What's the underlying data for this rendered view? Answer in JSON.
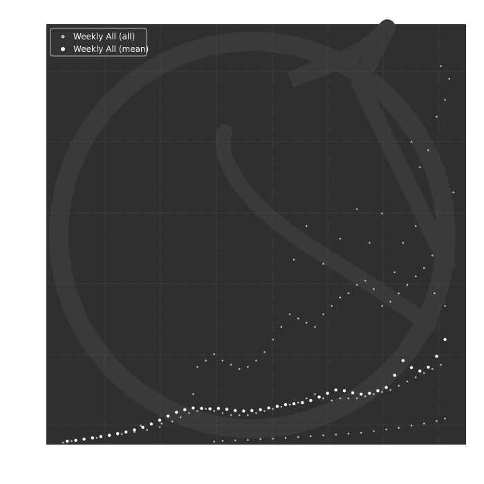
{
  "colors": {
    "page_background": "#ffffff",
    "plot_background": "#2f2f2f",
    "grid": "#6a6a6a",
    "all_points": "#bdbdbd",
    "mean_points": "#ffffff",
    "watermark": "#3a3a3a"
  },
  "chart_data": {
    "type": "scatter",
    "title": "",
    "xlabel": "",
    "ylabel": "",
    "xlim": [
      0,
      200
    ],
    "ylim": [
      0,
      100
    ],
    "grid": true,
    "tick_labels_visible": false,
    "legend": {
      "position": "top-left",
      "entries": [
        "Weekly All (all)",
        "Weekly All (mean)"
      ]
    },
    "series": [
      {
        "name": "Weekly All (all)",
        "marker": "small-dot",
        "values": [
          [
            8,
            0.5
          ],
          [
            12,
            0.8
          ],
          [
            18,
            1.2
          ],
          [
            24,
            1.6
          ],
          [
            30,
            2.0
          ],
          [
            36,
            2.5
          ],
          [
            42,
            3.0
          ],
          [
            48,
            3.5
          ],
          [
            54,
            4.2
          ],
          [
            60,
            5.5
          ],
          [
            64,
            6.5
          ],
          [
            68,
            7.5
          ],
          [
            72,
            8.0
          ],
          [
            76,
            8.5
          ],
          [
            80,
            8.0
          ],
          [
            84,
            7.5
          ],
          [
            88,
            7.0
          ],
          [
            92,
            7.0
          ],
          [
            96,
            7.0
          ],
          [
            100,
            7.5
          ],
          [
            104,
            8.0
          ],
          [
            108,
            8.5
          ],
          [
            112,
            9.0
          ],
          [
            116,
            9.5
          ],
          [
            120,
            10.0
          ],
          [
            124,
            11.0
          ],
          [
            128,
            12.0
          ],
          [
            132,
            11.0
          ],
          [
            136,
            10.5
          ],
          [
            140,
            11.0
          ],
          [
            144,
            11.0
          ],
          [
            148,
            11.0
          ],
          [
            152,
            11.5
          ],
          [
            156,
            12.0
          ],
          [
            160,
            12.5
          ],
          [
            164,
            13.0
          ],
          [
            168,
            14.0
          ],
          [
            172,
            15.0
          ],
          [
            176,
            16.0
          ],
          [
            180,
            17.0
          ],
          [
            184,
            18.0
          ],
          [
            188,
            19.0
          ],
          [
            45,
            4.5
          ],
          [
            55,
            5.0
          ],
          [
            62,
            7.5
          ],
          [
            70,
            12.0
          ],
          [
            72,
            18.5
          ],
          [
            76,
            20.0
          ],
          [
            80,
            21.5
          ],
          [
            84,
            20.0
          ],
          [
            88,
            19.0
          ],
          [
            92,
            18.0
          ],
          [
            96,
            18.5
          ],
          [
            100,
            20.0
          ],
          [
            104,
            22.0
          ],
          [
            108,
            25.0
          ],
          [
            112,
            28.0
          ],
          [
            116,
            31.0
          ],
          [
            120,
            30.0
          ],
          [
            124,
            29.0
          ],
          [
            128,
            28.0
          ],
          [
            132,
            31.0
          ],
          [
            136,
            33.0
          ],
          [
            140,
            35.0
          ],
          [
            144,
            36.0
          ],
          [
            148,
            38.0
          ],
          [
            152,
            39.0
          ],
          [
            156,
            37.0
          ],
          [
            160,
            33.0
          ],
          [
            164,
            34.0
          ],
          [
            168,
            36.0
          ],
          [
            172,
            38.0
          ],
          [
            176,
            40.0
          ],
          [
            180,
            42.0
          ],
          [
            184,
            45.0
          ],
          [
            80,
            0.7
          ],
          [
            84,
            0.9
          ],
          [
            90,
            1.0
          ],
          [
            96,
            1.1
          ],
          [
            102,
            1.3
          ],
          [
            108,
            1.4
          ],
          [
            114,
            1.6
          ],
          [
            120,
            1.8
          ],
          [
            126,
            2.0
          ],
          [
            132,
            2.2
          ],
          [
            138,
            2.4
          ],
          [
            144,
            2.6
          ],
          [
            150,
            2.8
          ],
          [
            156,
            3.2
          ],
          [
            162,
            3.6
          ],
          [
            168,
            4.0
          ],
          [
            174,
            4.5
          ],
          [
            180,
            5.0
          ],
          [
            186,
            5.6
          ],
          [
            190,
            6.2
          ],
          [
            118,
            44.0
          ],
          [
            124,
            52.0
          ],
          [
            132,
            43.0
          ],
          [
            140,
            49.0
          ],
          [
            148,
            56.0
          ],
          [
            154,
            48.0
          ],
          [
            160,
            55.0
          ],
          [
            166,
            41.0
          ],
          [
            170,
            48.0
          ],
          [
            174,
            72.0
          ],
          [
            178,
            66.0
          ],
          [
            182,
            70.0
          ],
          [
            186,
            78.0
          ],
          [
            190,
            82.0
          ],
          [
            194,
            60.0
          ],
          [
            176,
            52.0
          ],
          [
            188,
            90.0
          ],
          [
            192,
            87.0
          ],
          [
            185,
            36.0
          ],
          [
            190,
            33.0
          ]
        ]
      },
      {
        "name": "Weekly All (mean)",
        "marker": "dot",
        "values": [
          [
            10,
            0.8
          ],
          [
            14,
            1.0
          ],
          [
            18,
            1.3
          ],
          [
            22,
            1.6
          ],
          [
            26,
            1.9
          ],
          [
            30,
            2.2
          ],
          [
            34,
            2.6
          ],
          [
            38,
            3.0
          ],
          [
            42,
            3.5
          ],
          [
            46,
            4.1
          ],
          [
            50,
            4.9
          ],
          [
            54,
            5.8
          ],
          [
            58,
            6.8
          ],
          [
            62,
            7.7
          ],
          [
            66,
            8.3
          ],
          [
            70,
            8.7
          ],
          [
            74,
            8.6
          ],
          [
            78,
            8.5
          ],
          [
            82,
            8.6
          ],
          [
            86,
            8.4
          ],
          [
            90,
            8.1
          ],
          [
            94,
            8.0
          ],
          [
            98,
            8.1
          ],
          [
            102,
            8.3
          ],
          [
            106,
            8.7
          ],
          [
            110,
            9.1
          ],
          [
            114,
            9.5
          ],
          [
            118,
            9.7
          ],
          [
            122,
            10.0
          ],
          [
            126,
            10.5
          ],
          [
            130,
            11.3
          ],
          [
            134,
            12.2
          ],
          [
            138,
            13.0
          ],
          [
            142,
            12.8
          ],
          [
            146,
            12.3
          ],
          [
            150,
            12.0
          ],
          [
            154,
            12.2
          ],
          [
            158,
            12.8
          ],
          [
            162,
            13.6
          ],
          [
            166,
            16.5
          ],
          [
            170,
            20.0
          ],
          [
            174,
            18.3
          ],
          [
            178,
            17.5
          ],
          [
            182,
            18.4
          ],
          [
            186,
            21.0
          ],
          [
            190,
            25.0
          ]
        ]
      }
    ]
  }
}
